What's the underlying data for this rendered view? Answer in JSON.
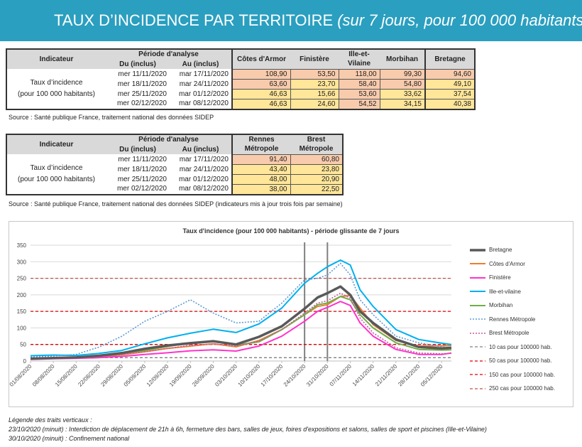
{
  "banner": {
    "title": "TAUX D’INCIDENCE PAR TERRITOIRE",
    "subtitle": "(sur 7 jours, pour 100 000 habitants)"
  },
  "table1": {
    "indicator_label": "Indicateur",
    "period_label": "Période d'analyse",
    "from_label": "Du (inclus)",
    "to_label": "Au (inclus)",
    "columns": [
      "Côtes d'Armor",
      "Finistère",
      "Ille-et-\nVilaine",
      "Morbihan",
      "Bretagne"
    ],
    "desc_line1": "Taux d’incidence",
    "desc_line2": "(pour 100 000 habitants)",
    "rows": [
      {
        "from": "mer 11/11/2020",
        "to": "mar 17/11/2020",
        "values": [
          "108,90",
          "53,50",
          "118,00",
          "99,30",
          "94,60"
        ]
      },
      {
        "from": "mer 18/11/2020",
        "to": "mar 24/11/2020",
        "values": [
          "63,60",
          "23,70",
          "58,40",
          "54,80",
          "49,10"
        ]
      },
      {
        "from": "mer 25/11/2020",
        "to": "mar 01/12/2020",
        "values": [
          "46,63",
          "15,66",
          "53,60",
          "33,62",
          "37,54"
        ]
      },
      {
        "from": "mer 02/12/2020",
        "to": "mar 08/12/2020",
        "values": [
          "46,63",
          "24,60",
          "54,52",
          "34,15",
          "40,38"
        ]
      }
    ],
    "source": "Source  : Santé publique France, traitement national des données SIDEP"
  },
  "table2": {
    "indicator_label": "Indicateur",
    "period_label": "Période d'analyse",
    "from_label": "Du (inclus)",
    "to_label": "Au (inclus)",
    "columns": [
      "Rennes\nMétropole",
      "Brest\nMétropole"
    ],
    "desc_line1": "Taux d’incidence",
    "desc_line2": "(pour 100 000 habitants)",
    "rows": [
      {
        "from": "mer 11/11/2020",
        "to": "mar 17/11/2020",
        "values": [
          "91,40",
          "60,80"
        ]
      },
      {
        "from": "mer 18/11/2020",
        "to": "mar 24/11/2020",
        "values": [
          "43,40",
          "23,80"
        ]
      },
      {
        "from": "mer 25/11/2020",
        "to": "mar 01/12/2020",
        "values": [
          "48,00",
          "20,90"
        ]
      },
      {
        "from": "mer 02/12/2020",
        "to": "mar 08/12/2020",
        "values": [
          "38,00",
          "22,50"
        ]
      }
    ],
    "source": "Source  : Santé publique France, traitement national des données SIDEP (indicateurs mis à jour trois fois par semaine)"
  },
  "colors": {
    "banner": "#2a9fc0",
    "cell_orange": "#f8cbad",
    "cell_yellow": "#ffe699"
  },
  "notes": {
    "heading": "Légende des traits verticaux :",
    "line1": "23/10/2020 (minuit) : Interdiction de déplacement de 21h à 6h, fermeture des bars, salles de jeux, foires d'expositions et salons, salles de sport et piscines (Ille-et-Vilaine)",
    "line2": "30/10/2020 (minuit) : Confinement national"
  },
  "chart_data": {
    "type": "line",
    "title": "Taux d'incidence (pour 100 000 habitants) - période glissante de 7 jours",
    "x_ticks": [
      "01/08/2020",
      "08/08/2020",
      "15/08/2020",
      "22/08/2020",
      "29/08/2020",
      "05/09/2020",
      "12/09/2020",
      "19/09/2020",
      "26/09/2020",
      "03/10/2020",
      "10/10/2020",
      "17/10/2020",
      "24/10/2020",
      "31/10/2020",
      "07/11/2020",
      "14/11/2020",
      "21/11/2020",
      "28/11/2020",
      "05/12/2020"
    ],
    "y_ticks": [
      0,
      50,
      100,
      150,
      200,
      250,
      300,
      350
    ],
    "ylim": [
      0,
      350
    ],
    "grid": true,
    "legend_position": "right",
    "vertical_lines": [
      "24/10/2020",
      "31/10/2020"
    ],
    "sample_dates": [
      "01/08",
      "08/08",
      "15/08",
      "22/08",
      "29/08",
      "05/09",
      "12/09",
      "19/09",
      "26/09",
      "03/10",
      "10/10",
      "17/10",
      "24/10",
      "28/10",
      "31/10",
      "04/11",
      "07/11",
      "10/11",
      "14/11",
      "21/11",
      "28/11",
      "05/12",
      "08/12"
    ],
    "series": [
      {
        "name": "Bretagne",
        "color": "#595959",
        "width": 3.5,
        "dash": "",
        "values": [
          7,
          9,
          11,
          16,
          24,
          37,
          47,
          54,
          60,
          50,
          73,
          105,
          158,
          192,
          205,
          225,
          200,
          150,
          115,
          65,
          42,
          38,
          40
        ]
      },
      {
        "name": "Côtes d'Armor",
        "color": "#ed7d31",
        "width": 2,
        "dash": "",
        "values": [
          6,
          8,
          9,
          13,
          19,
          28,
          38,
          45,
          52,
          43,
          62,
          95,
          140,
          165,
          170,
          195,
          198,
          160,
          110,
          62,
          45,
          46,
          47
        ]
      },
      {
        "name": "Finistère",
        "color": "#ff33cc",
        "width": 2,
        "dash": "",
        "values": [
          5,
          7,
          8,
          10,
          14,
          20,
          25,
          31,
          34,
          30,
          45,
          75,
          120,
          150,
          162,
          180,
          168,
          115,
          75,
          35,
          20,
          20,
          24
        ]
      },
      {
        "name": "Ille-et-vilaine",
        "color": "#00b0f0",
        "width": 2,
        "dash": "",
        "values": [
          16,
          18,
          17,
          23,
          32,
          52,
          70,
          84,
          96,
          86,
          112,
          160,
          235,
          265,
          285,
          305,
          290,
          215,
          165,
          95,
          65,
          54,
          50
        ]
      },
      {
        "name": "Morbihan",
        "color": "#70ad47",
        "width": 2,
        "dash": "",
        "values": [
          7,
          9,
          10,
          14,
          23,
          32,
          44,
          55,
          60,
          48,
          58,
          95,
          140,
          170,
          175,
          195,
          185,
          140,
          100,
          55,
          35,
          33,
          34
        ]
      },
      {
        "name": "Rennes Métropole",
        "color": "#5b9bd5",
        "width": 1.6,
        "dash": "2 2",
        "values": [
          12,
          15,
          20,
          42,
          75,
          120,
          150,
          185,
          145,
          115,
          120,
          175,
          245,
          250,
          260,
          295,
          260,
          185,
          140,
          75,
          55,
          43,
          38
        ]
      },
      {
        "name": "Brest Métropole",
        "color": "#c55aa0",
        "width": 1.6,
        "dash": "2 2",
        "values": [
          5,
          8,
          10,
          14,
          20,
          28,
          38,
          47,
          52,
          45,
          60,
          95,
          145,
          175,
          182,
          205,
          190,
          130,
          85,
          40,
          24,
          22,
          23
        ]
      },
      {
        "name": "10 cas pour 100000 hab.",
        "color": "#808080",
        "width": 1.3,
        "dash": "4 3",
        "values": [
          10,
          10,
          10,
          10,
          10,
          10,
          10,
          10,
          10,
          10,
          10,
          10,
          10,
          10,
          10,
          10,
          10,
          10,
          10,
          10,
          10,
          10,
          10
        ]
      },
      {
        "name": "50 cas pour 100000 hab.",
        "color": "#e00000",
        "width": 1.3,
        "dash": "4 3",
        "values": [
          50,
          50,
          50,
          50,
          50,
          50,
          50,
          50,
          50,
          50,
          50,
          50,
          50,
          50,
          50,
          50,
          50,
          50,
          50,
          50,
          50,
          50,
          50
        ]
      },
      {
        "name": "150 cas pour 100000 hab.",
        "color": "#e00000",
        "width": 1.3,
        "dash": "4 3",
        "values": [
          150,
          150,
          150,
          150,
          150,
          150,
          150,
          150,
          150,
          150,
          150,
          150,
          150,
          150,
          150,
          150,
          150,
          150,
          150,
          150,
          150,
          150,
          150
        ]
      },
      {
        "name": "250 cas pour 100000 hab.",
        "color": "#c0504d",
        "width": 1.3,
        "dash": "4 3",
        "values": [
          250,
          250,
          250,
          250,
          250,
          250,
          250,
          250,
          250,
          250,
          250,
          250,
          250,
          250,
          250,
          250,
          250,
          250,
          250,
          250,
          250,
          250,
          250
        ]
      }
    ]
  }
}
